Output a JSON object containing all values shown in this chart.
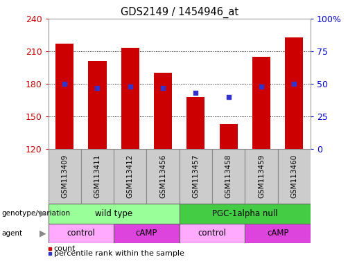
{
  "title": "GDS2149 / 1454946_at",
  "samples": [
    "GSM113409",
    "GSM113411",
    "GSM113412",
    "GSM113456",
    "GSM113457",
    "GSM113458",
    "GSM113459",
    "GSM113460"
  ],
  "counts": [
    217,
    201,
    213,
    190,
    168,
    143,
    205,
    223
  ],
  "percentile_ranks": [
    50,
    47,
    48,
    47,
    43,
    40,
    48,
    50
  ],
  "y_min": 120,
  "y_max": 240,
  "y_ticks": [
    120,
    150,
    180,
    210,
    240
  ],
  "y_right_ticks": [
    0,
    25,
    50,
    75,
    100
  ],
  "bar_color": "#cc0000",
  "dot_color": "#3333cc",
  "genotype_groups": [
    {
      "label": "wild type",
      "start": 0,
      "end": 4,
      "color": "#99ff99"
    },
    {
      "label": "PGC-1alpha null",
      "start": 4,
      "end": 8,
      "color": "#44cc44"
    }
  ],
  "agent_groups": [
    {
      "label": "control",
      "start": 0,
      "end": 2,
      "color": "#ffaaff"
    },
    {
      "label": "cAMP",
      "start": 2,
      "end": 4,
      "color": "#dd44dd"
    },
    {
      "label": "control",
      "start": 4,
      "end": 6,
      "color": "#ffaaff"
    },
    {
      "label": "cAMP",
      "start": 6,
      "end": 8,
      "color": "#dd44dd"
    }
  ],
  "genotype_label": "genotype/variation",
  "agent_label": "agent",
  "legend_count_label": "count",
  "legend_pct_label": "percentile rank within the sample",
  "bar_color_legend": "#cc0000",
  "dot_color_legend": "#3333cc",
  "bar_bottom": 120,
  "xticklabel_bg": "#cccccc",
  "tick_label_color": "#cc0000",
  "right_tick_color": "#0000cc"
}
